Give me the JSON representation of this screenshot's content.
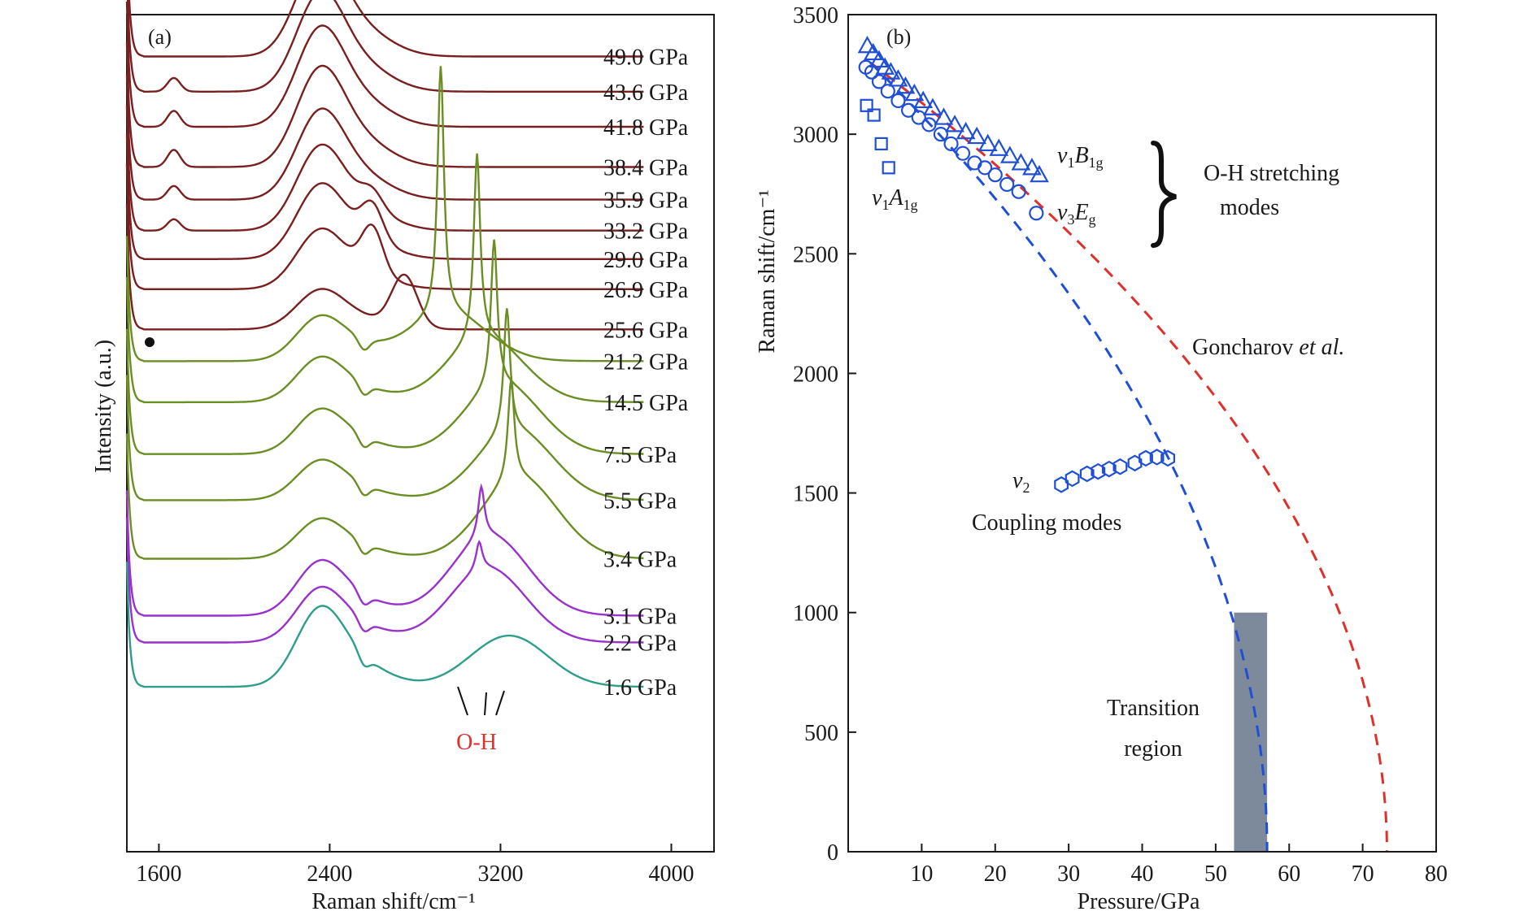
{
  "chart_data": [
    {
      "panel": "(a)",
      "type": "line",
      "xlabel": "Raman shift/cm⁻¹",
      "ylabel": "Intensity (a.u.)",
      "xlim": [
        1450,
        4200
      ],
      "xticks": [
        1600,
        2400,
        3200,
        4000
      ],
      "annotation": "O-H",
      "dot_marker_near": "29.0 GPa",
      "series": [
        {
          "label": "49.0 GPa",
          "color": "#7a1f1f",
          "base": 0.95,
          "p1": 1.0,
          "d1": 0.0,
          "p2": 0.0,
          "sharp": 0.0,
          "sharpX": 3200,
          "b2": 0.0,
          "dip": 0.0,
          "shoulder": 0.0
        },
        {
          "label": "43.6 GPa",
          "color": "#7a1f1f",
          "base": 0.908,
          "p1": 1.0,
          "d1": 0.12,
          "p2": 0.0,
          "sharp": 0.0,
          "sharpX": 3200,
          "b2": 0.0,
          "dip": 0.0,
          "shoulder": 0.0
        },
        {
          "label": "41.8 GPa",
          "color": "#7a1f1f",
          "base": 0.866,
          "p1": 1.0,
          "d1": 0.14,
          "p2": 0.0,
          "sharp": 0.0,
          "sharpX": 3200,
          "b2": 0.0,
          "dip": 0.0,
          "shoulder": 0.0
        },
        {
          "label": "38.4 GPa",
          "color": "#7a1f1f",
          "base": 0.818,
          "p1": 1.0,
          "d1": 0.15,
          "p2": 0.0,
          "sharp": 0.0,
          "sharpX": 3200,
          "b2": 0.0,
          "dip": 0.0,
          "shoulder": 0.0
        },
        {
          "label": "35.9 GPa",
          "color": "#7a1f1f",
          "base": 0.779,
          "p1": 0.9,
          "d1": 0.12,
          "p2": 0.0,
          "sharp": 0.0,
          "sharpX": 3200,
          "b2": 0.0,
          "dip": 0.0,
          "shoulder": 0.0
        },
        {
          "label": "33.2 GPa",
          "color": "#7a1f1f",
          "base": 0.742,
          "p1": 0.85,
          "d1": 0.1,
          "p2": 0.0,
          "sharp": 0.0,
          "sharpX": 3200,
          "b2": 0.0,
          "dip": 0.0,
          "shoulder": 0.15
        },
        {
          "label": "29.0 GPa",
          "color": "#7a1f1f",
          "base": 0.708,
          "p1": 0.75,
          "d1": 0.0,
          "p2": 0.0,
          "sharp": 0.0,
          "sharpX": 3200,
          "b2": 0.0,
          "dip": 0.0,
          "shoulder": 0.3
        },
        {
          "label": "26.9 GPa",
          "color": "#7a1f1f",
          "base": 0.672,
          "p1": 0.6,
          "d1": 0.0,
          "p2": 0.0,
          "sharp": 0.0,
          "sharpX": 3200,
          "b2": 0.0,
          "dip": 0.0,
          "shoulder": 0.4
        },
        {
          "label": "25.6 GPa",
          "color": "#7a1f1f",
          "base": 0.624,
          "p1": 0.4,
          "d1": 0.0,
          "p2": 0.45,
          "sharp": 0.0,
          "sharpX": 3200,
          "b2": 0.0,
          "dip": 0.0,
          "shoulder": 0.0
        },
        {
          "label": "21.2 GPa",
          "color": "#6b8e23",
          "base": 0.586,
          "p1": 0.45,
          "d1": 0.0,
          "p2": 0.0,
          "sharp": 2.2,
          "sharpX": 2920,
          "b2": 0.4,
          "dip": 0.1,
          "shoulder": 0.0
        },
        {
          "label": "14.5 GPa",
          "color": "#6b8e23",
          "base": 0.537,
          "p1": 0.45,
          "d1": 0.0,
          "p2": 0.0,
          "sharp": 1.65,
          "sharpX": 3090,
          "b2": 0.55,
          "dip": 0.1,
          "shoulder": 0.0
        },
        {
          "label": "7.5 GPa",
          "color": "#6b8e23",
          "base": 0.475,
          "p1": 0.45,
          "d1": 0.0,
          "p2": 0.0,
          "sharp": 1.3,
          "sharpX": 3170,
          "b2": 0.6,
          "dip": 0.1,
          "shoulder": 0.0
        },
        {
          "label": "5.5 GPa",
          "color": "#6b8e23",
          "base": 0.42,
          "p1": 0.4,
          "d1": 0.0,
          "p2": 0.0,
          "sharp": 1.1,
          "sharpX": 3230,
          "b2": 0.6,
          "dip": 0.1,
          "shoulder": 0.0
        },
        {
          "label": "3.4 GPa",
          "color": "#6b8e23",
          "base": 0.35,
          "p1": 0.4,
          "d1": 0.0,
          "p2": 0.0,
          "sharp": 0.9,
          "sharpX": 3250,
          "b2": 0.7,
          "dip": 0.1,
          "shoulder": 0.0
        },
        {
          "label": "3.1 GPa",
          "color": "#9932cc",
          "base": 0.282,
          "p1": 0.55,
          "d1": 0.0,
          "p2": 0.0,
          "sharp": 0.45,
          "sharpX": 3110,
          "b2": 0.7,
          "dip": 0.1,
          "shoulder": 0.0
        },
        {
          "label": "2.2 GPa",
          "color": "#9932cc",
          "base": 0.25,
          "p1": 0.55,
          "d1": 0.0,
          "p2": 0.0,
          "sharp": 0.25,
          "sharpX": 3100,
          "b2": 0.65,
          "dip": 0.1,
          "shoulder": 0.0
        },
        {
          "label": "1.6 GPa",
          "color": "#2e9e8a",
          "base": 0.197,
          "p1": 0.8,
          "d1": 0.0,
          "p2": 0.0,
          "sharp": 0.0,
          "sharpX": 3200,
          "b2": 0.45,
          "dip": 0.1,
          "shoulder": 0.0
        }
      ]
    },
    {
      "panel": "(b)",
      "type": "scatter",
      "xlabel": "Pressure/GPa",
      "ylabel": "Raman shift/cm⁻¹",
      "xlim": [
        0,
        80
      ],
      "ylim": [
        0,
        3500
      ],
      "xticks": [
        10,
        20,
        30,
        40,
        50,
        60,
        70,
        80
      ],
      "yticks": [
        0,
        500,
        1000,
        1500,
        2000,
        2500,
        3000,
        3500
      ],
      "marker_color": "#1f4fd6",
      "series": [
        {
          "name": "v1B1g",
          "marker": "triangle",
          "x": [
            2.6,
            3.4,
            4.2,
            5.0,
            5.8,
            6.8,
            7.8,
            9.0,
            10.2,
            11.5,
            13.0,
            14.5,
            16.0,
            17.5,
            19.0,
            20.5,
            22.0,
            23.5,
            25.0,
            26.0
          ],
          "y": [
            3370,
            3340,
            3310,
            3280,
            3260,
            3230,
            3200,
            3170,
            3140,
            3110,
            3070,
            3040,
            3010,
            2990,
            2960,
            2940,
            2910,
            2880,
            2860,
            2830
          ]
        },
        {
          "name": "v3Eg",
          "marker": "circle",
          "x": [
            2.4,
            3.2,
            4.2,
            5.4,
            6.8,
            8.2,
            9.6,
            11.0,
            12.6,
            14.0,
            15.6,
            17.2,
            18.6,
            20.0,
            21.6,
            23.2,
            25.6
          ],
          "y": [
            3280,
            3260,
            3220,
            3180,
            3140,
            3100,
            3070,
            3040,
            3000,
            2960,
            2920,
            2880,
            2860,
            2830,
            2790,
            2760,
            2670
          ]
        },
        {
          "name": "v1A1g",
          "marker": "square",
          "x": [
            2.5,
            3.5,
            4.5,
            5.5
          ],
          "y": [
            3120,
            3080,
            2960,
            2860
          ]
        },
        {
          "name": "v2",
          "marker": "hexagon",
          "x": [
            29.0,
            30.5,
            32.5,
            34.0,
            35.5,
            37.0,
            39.0,
            40.5,
            42.0,
            43.5
          ],
          "y": [
            1535,
            1560,
            1580,
            1590,
            1600,
            1610,
            1625,
            1645,
            1650,
            1645
          ]
        }
      ],
      "fits": [
        {
          "name": "Goncharov et al. fit",
          "color": "#e0302c",
          "style": "dashed",
          "x0": 73.3,
          "y_top": 3300
        },
        {
          "name": "fit to v3Eg",
          "color": "#1f4fd6",
          "style": "dashed",
          "x0": 57.0,
          "y_top": 3300
        }
      ],
      "transition_region": {
        "x": [
          52.5,
          57.0
        ],
        "y": [
          0,
          1000
        ],
        "color": "#7d8a9c"
      },
      "text": {
        "v1B1g_base": "v",
        "v1B1g_sub1": "1",
        "v1B1g_main": "B",
        "v1B1g_sub2": "1g",
        "v3Eg_base": "v",
        "v3Eg_sub1": "3",
        "v3Eg_main": "E",
        "v3Eg_sub2": "g",
        "v1A1g_base": "v",
        "v1A1g_sub1": "1",
        "v1A1g_main": "A",
        "v1A1g_sub2": "1g",
        "v2_base": "v",
        "v2_sub": "2",
        "oh_stretching_line1": "O-H stretching",
        "oh_stretching_line2": "modes",
        "coupling_modes": "Coupling modes",
        "goncharov_main": "Goncharov ",
        "goncharov_italic": "et al.",
        "transition_line1": "Transition",
        "transition_line2": "region"
      }
    }
  ]
}
